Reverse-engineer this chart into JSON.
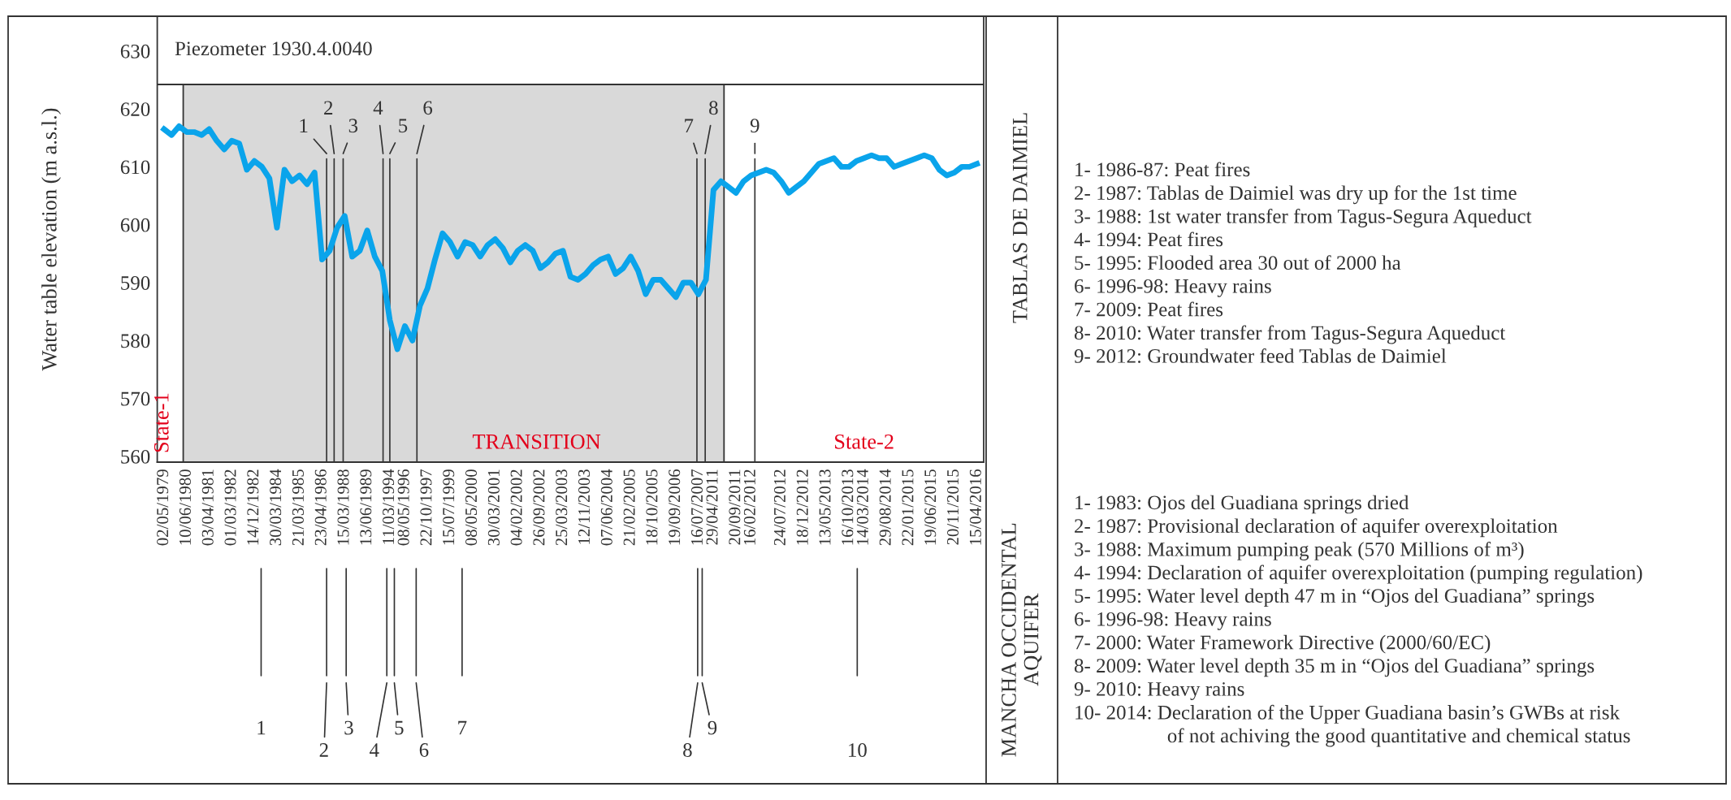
{
  "chart_data": [
    {
      "type": "line",
      "title": "Piezometer 1930.4.0040",
      "ylabel": "Water table elevation (m a.s.l.)",
      "categories": [
        "02/05/1979",
        null,
        null,
        "10/06/1980",
        null,
        null,
        "03/04/1981",
        null,
        null,
        "01/03/1982",
        null,
        null,
        "14/12/1982",
        null,
        null,
        "30/03/1984",
        null,
        null,
        "21/03/1985",
        null,
        null,
        "23/04/1986",
        null,
        null,
        "15/03/1988",
        null,
        null,
        "13/06/1989",
        null,
        null,
        "11/03/1994",
        null,
        "08/05/1996",
        null,
        null,
        "22/10/1997",
        null,
        null,
        "15/07/1999",
        null,
        null,
        "08/05/2000",
        null,
        null,
        "30/03/2001",
        null,
        null,
        "04/02/2002",
        null,
        null,
        "26/09/2002",
        null,
        null,
        "25/03/2003",
        null,
        null,
        "12/11/2003",
        null,
        null,
        "07/06/2004",
        null,
        null,
        "21/02/2005",
        null,
        null,
        "18/10/2005",
        null,
        null,
        "19/09/2006",
        null,
        null,
        "16/07/2007",
        null,
        "29/04/2011",
        null,
        null,
        "20/09/2011",
        null,
        "16/02/2012",
        null,
        null,
        null,
        "24/07/2012",
        null,
        null,
        "18/12/2012",
        null,
        null,
        "13/05/2013",
        null,
        null,
        "16/10/2013",
        null,
        "14/03/2014",
        null,
        null,
        "29/08/2014",
        null,
        null,
        "22/01/2015",
        null,
        null,
        "19/06/2015",
        null,
        null,
        "20/11/2015",
        null,
        null,
        "15/04/2016"
      ],
      "series": [
        {
          "color": "#0aa4eb",
          "values": [
            616.5,
            615.5,
            617,
            616,
            616,
            615.5,
            616.5,
            614.5,
            613,
            614.5,
            614,
            609.5,
            611,
            610,
            608,
            599.5,
            609.5,
            607.5,
            608.5,
            607,
            609,
            594,
            595.5,
            599.5,
            601.5,
            594.5,
            595.5,
            599,
            594.5,
            592,
            583.5,
            578.5,
            582.5,
            580,
            586,
            589,
            594,
            598.5,
            597,
            594.5,
            597,
            596.5,
            594.5,
            596.5,
            597.5,
            596,
            593.5,
            595.5,
            596.5,
            595.5,
            592.5,
            593.5,
            595,
            595.5,
            591,
            590.5,
            591.5,
            593,
            594,
            594.5,
            591.5,
            592.5,
            594.5,
            592,
            588,
            590.5,
            590.5,
            589,
            587.5,
            590,
            590,
            588,
            590.5,
            606,
            607.5,
            606.5,
            605.5,
            607.5,
            608.5,
            609,
            609.5,
            609,
            607.5,
            605.5,
            606.5,
            607.5,
            609,
            610.5,
            611,
            611.5,
            610,
            610,
            611,
            611.5,
            612,
            611.5,
            611.5,
            610,
            610.5,
            611,
            611.5,
            612,
            611.5,
            609.5,
            608.5,
            609,
            610,
            610,
            610.5
          ]
        }
      ],
      "ylim": [
        559,
        636
      ],
      "yticks": [
        560,
        570,
        580,
        590,
        600,
        610,
        620,
        630
      ],
      "annotations": [
        "State-1",
        "TRANSITION",
        "State-2",
        "1",
        "2",
        "3",
        "4",
        "5",
        "6",
        "7",
        "8",
        "9",
        "1",
        "2",
        "3",
        "4",
        "5",
        "6",
        "7",
        "8",
        "9",
        "10"
      ],
      "grid": false,
      "legend": false
    },
    {
      "type": "other",
      "title": "TABLAS DE DAIMIEL",
      "annotations": [
        "1- 1986-87: Peat fires",
        "2- 1987: Tablas de Daimiel was dry up for the 1st time",
        "3- 1988: 1st water transfer from Tagus-Segura Aqueduct",
        "4- 1994: Peat fires",
        "5- 1995: Flooded area 30 out of 2000 ha",
        "6- 1996-98: Heavy rains",
        "7- 2009: Peat fires",
        "8- 2010: Water transfer from Tagus-Segura Aqueduct",
        "9- 2012: Groundwater feed Tablas de Daimiel"
      ]
    },
    {
      "type": "other",
      "title": "MANCHA OCCIDENTAL\nAQUIFER",
      "annotations": [
        "1- 1983: Ojos del Guadiana springs dried",
        "2- 1987: Provisional declaration of aquifer overexploitation",
        "3- 1988: Maximum pumping peak (570 Millions of m³)",
        "4- 1994: Declaration of aquifer overexploitation (pumping regulation)",
        "5- 1995: Water level depth 47 m in “Ojos del Guadiana” springs",
        "6- 1996-98: Heavy rains",
        "7- 2000: Water Framework Directive (2000/60/EC)",
        "8- 2009: Water level depth 35 m in “Ojos del Guadiana” springs",
        "9- 2010: Heavy rains",
        "10- 2014: Declaration of the Upper Guadiana basin’s GWBs at risk\nof not achiving the good quantitative and chemical status"
      ]
    }
  ]
}
